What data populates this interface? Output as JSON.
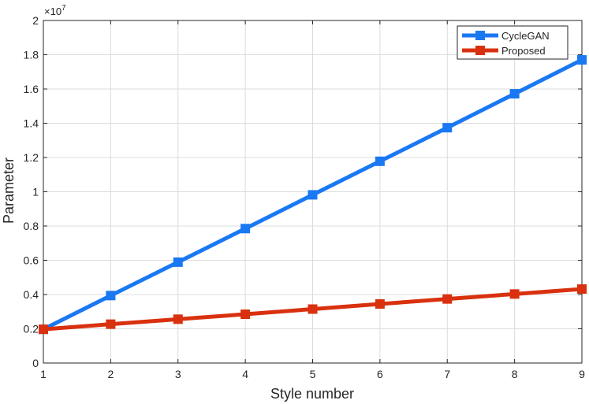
{
  "chart_data": {
    "type": "line",
    "xlabel": "Style number",
    "ylabel": "Parameter",
    "exponent_label": "×10",
    "exponent_power": "7",
    "x": [
      1,
      2,
      3,
      4,
      5,
      6,
      7,
      8,
      9
    ],
    "xlim": [
      1,
      9
    ],
    "ylim": [
      0,
      2
    ],
    "xticks": [
      "1",
      "2",
      "3",
      "4",
      "5",
      "6",
      "7",
      "8",
      "9"
    ],
    "yticks": [
      "0",
      "0.2",
      "0.4",
      "0.6",
      "0.8",
      "1",
      "1.2",
      "1.4",
      "1.6",
      "1.8",
      "2"
    ],
    "grid": true,
    "legend_position": "top-right",
    "series": [
      {
        "name": "CycleGAN",
        "color": "#1a78f2",
        "values": [
          0.197,
          0.394,
          0.589,
          0.785,
          0.982,
          1.178,
          1.374,
          1.572,
          1.77
        ]
      },
      {
        "name": "Proposed",
        "color": "#d9310f",
        "values": [
          0.197,
          0.227,
          0.256,
          0.285,
          0.315,
          0.345,
          0.374,
          0.403,
          0.432
        ]
      }
    ]
  }
}
